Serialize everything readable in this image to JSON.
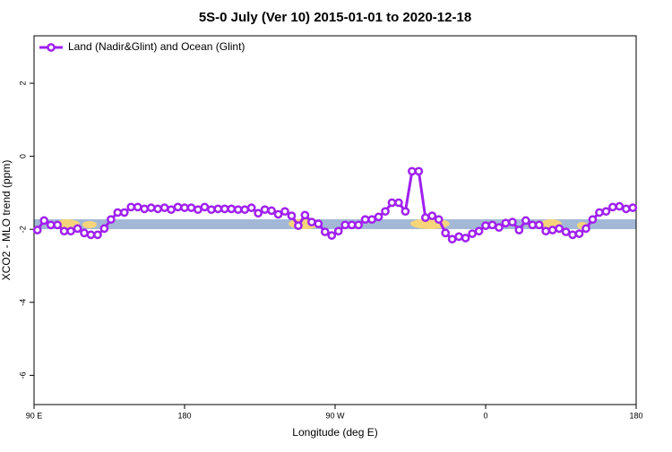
{
  "chart_data": {
    "type": "line",
    "title": "5S-0 July (Ver 10)   2015-01-01 to 2020-12-18",
    "xlabel": "Longitude (deg E)",
    "ylabel": "XCO2 - MLO trend (ppm)",
    "x": [
      92,
      96,
      100,
      104,
      108,
      112,
      116,
      120,
      124,
      128,
      132,
      136,
      140,
      144,
      148,
      152,
      156,
      160,
      164,
      168,
      172,
      176,
      180,
      184,
      188,
      192,
      196,
      200,
      204,
      208,
      212,
      216,
      220,
      224,
      228,
      232,
      236,
      240,
      244,
      248,
      252,
      256,
      260,
      264,
      268,
      272,
      276,
      280,
      284,
      288,
      292,
      296,
      300,
      304,
      308,
      312,
      316,
      320,
      324,
      328,
      332,
      336,
      340,
      344,
      348,
      352,
      356,
      360,
      364,
      368,
      372,
      376,
      380,
      384,
      388,
      392,
      396,
      400,
      404,
      408,
      412,
      416,
      420,
      424,
      428,
      432,
      436,
      440,
      444,
      448
    ],
    "series": [
      {
        "name": "Land (Nadir&Glint) and Ocean (Glint)",
        "color": "#a020f0",
        "values": [
          -2.02,
          -1.76,
          -1.88,
          -1.88,
          -2.05,
          -2.05,
          -1.98,
          -2.1,
          -2.15,
          -2.15,
          -1.98,
          -1.73,
          -1.54,
          -1.54,
          -1.39,
          -1.39,
          -1.44,
          -1.41,
          -1.44,
          -1.41,
          -1.46,
          -1.39,
          -1.41,
          -1.41,
          -1.46,
          -1.39,
          -1.46,
          -1.44,
          -1.44,
          -1.44,
          -1.46,
          -1.46,
          -1.41,
          -1.56,
          -1.46,
          -1.49,
          -1.59,
          -1.51,
          -1.63,
          -1.9,
          -1.61,
          -1.8,
          -1.85,
          -2.07,
          -2.17,
          -2.05,
          -1.88,
          -1.88,
          -1.88,
          -1.73,
          -1.73,
          -1.66,
          -1.51,
          -1.27,
          -1.27,
          -1.51,
          -0.41,
          -0.41,
          -1.68,
          -1.63,
          -1.73,
          -2.1,
          -2.27,
          -2.2,
          -2.24,
          -2.12,
          -2.05,
          -1.9,
          -1.88,
          -1.95,
          -1.83,
          -1.8,
          -2.02,
          -1.76,
          -1.88,
          -1.88,
          -2.05,
          -2.02,
          -1.98,
          -2.07,
          -2.15,
          -2.12,
          -1.98,
          -1.73,
          -1.54,
          -1.51,
          -1.39,
          -1.37,
          -1.44,
          -1.41
        ]
      }
    ],
    "xlim": [
      90,
      450
    ],
    "xticks": [
      {
        "value": 90,
        "label": "90 E"
      },
      180,
      {
        "value": 270,
        "label": "90 W"
      },
      {
        "value": 360,
        "label": "0"
      },
      {
        "value": 450,
        "label": "180"
      }
    ],
    "ylim": [
      -6.8,
      3.3
    ],
    "yticks": [
      -6,
      -4,
      -2,
      0,
      2
    ],
    "legend": "top-left"
  }
}
